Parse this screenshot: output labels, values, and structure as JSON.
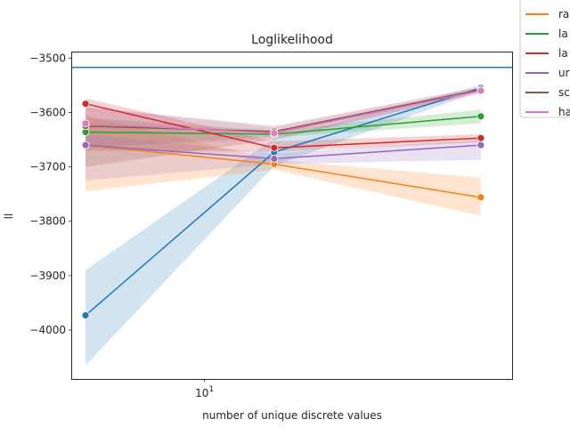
{
  "chart_data": {
    "type": "line",
    "title": "Loglikelihood",
    "xlabel": "number of unique discrete values",
    "ylabel": "ll",
    "x_scale": "log",
    "xlim": [
      4.6,
      60
    ],
    "ylim": [
      -4090,
      -3488
    ],
    "x": [
      5,
      15,
      50
    ],
    "x_ticks": [
      {
        "value": 10,
        "label": "10^1"
      }
    ],
    "y_ticks": [
      -4000,
      -3900,
      -3800,
      -3700,
      -3600,
      -3500
    ],
    "y_tick_labels": [
      "−4000",
      "−3900",
      "−3800",
      "−3700",
      "−3600",
      "−3500"
    ],
    "grid": false,
    "legend_position": "outside-top-right",
    "reference_line": {
      "y": -3517,
      "color": "#1f77b4"
    },
    "series": [
      {
        "name": "",
        "color": "#1f77b4",
        "values": [
          -3973,
          -3673,
          -3555
        ],
        "ci_low": [
          -4065,
          -3698,
          -3560
        ],
        "ci_high": [
          -3890,
          -3648,
          -3550
        ]
      },
      {
        "name": "ra",
        "color": "#ff7f0e",
        "values": [
          -3660,
          -3695,
          -3756
        ],
        "ci_low": [
          -3745,
          -3705,
          -3790
        ],
        "ci_high": [
          -3605,
          -3687,
          -3720
        ]
      },
      {
        "name": "la",
        "color": "#2ca02c",
        "values": [
          -3636,
          -3640,
          -3607
        ],
        "ci_low": [
          -3665,
          -3645,
          -3620
        ],
        "ci_high": [
          -3610,
          -3633,
          -3595
        ]
      },
      {
        "name": "la",
        "color": "#d62728",
        "values": [
          -3584,
          -3665,
          -3647
        ],
        "ci_low": [
          -3670,
          -3672,
          -3655
        ],
        "ci_high": [
          -3574,
          -3653,
          -3640
        ]
      },
      {
        "name": "ur",
        "color": "#9467bd",
        "values": [
          -3660,
          -3685,
          -3660
        ],
        "ci_low": [
          -3725,
          -3695,
          -3687
        ],
        "ci_high": [
          -3640,
          -3675,
          -3650
        ]
      },
      {
        "name": "sc",
        "color": "#8c564b",
        "values": [
          -3625,
          -3635,
          -3558
        ],
        "ci_low": [
          -3700,
          -3650,
          -3563
        ],
        "ci_high": [
          -3590,
          -3625,
          -3553
        ]
      },
      {
        "name": "ha",
        "color": "#e377c2",
        "values": [
          -3620,
          -3638,
          -3560
        ],
        "ci_low": [
          -3665,
          -3650,
          -3566
        ],
        "ci_high": [
          -3590,
          -3627,
          -3554
        ]
      }
    ]
  }
}
